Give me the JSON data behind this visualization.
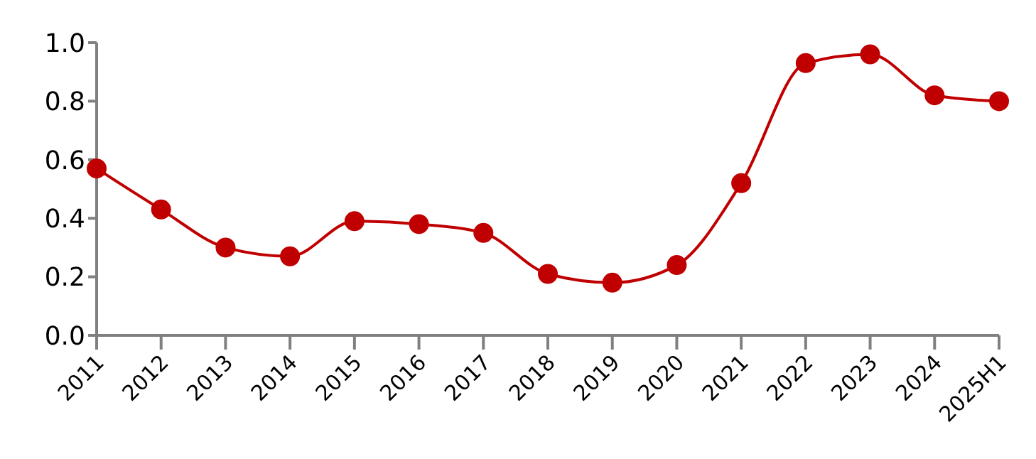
{
  "chart_data": {
    "type": "line",
    "categories": [
      "2011",
      "2012",
      "2013",
      "2014",
      "2015",
      "2016",
      "2017",
      "2018",
      "2019",
      "2020",
      "2021",
      "2022",
      "2023",
      "2024",
      "2025H1"
    ],
    "series": [
      {
        "color": "#c00000",
        "values": [
          0.57,
          0.43,
          0.3,
          0.27,
          0.39,
          0.38,
          0.35,
          0.21,
          0.18,
          0.24,
          0.52,
          0.93,
          0.96,
          0.82,
          0.8
        ]
      }
    ],
    "ylim": [
      0,
      1
    ],
    "yticks": [
      {
        "value": 0,
        "label": "0.0"
      },
      {
        "value": 0.2,
        "label": "0.2"
      },
      {
        "value": 0.4,
        "label": "0.4"
      },
      {
        "value": 0.6,
        "label": "0.6"
      },
      {
        "value": 0.8,
        "label": "0.8"
      },
      {
        "value": 1,
        "label": "1.0"
      }
    ],
    "grid": false,
    "legend": false,
    "marker": "circle",
    "line_style": "solid"
  }
}
